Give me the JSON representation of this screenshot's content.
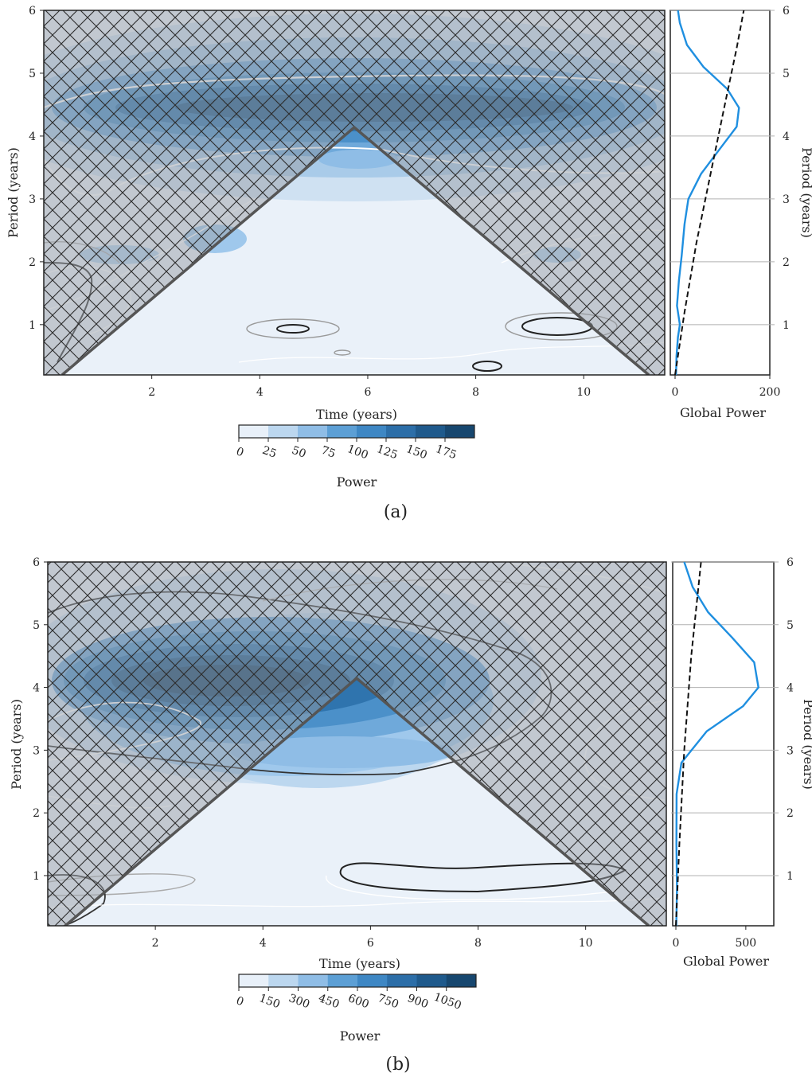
{
  "chart_data": [
    {
      "type": "heatmap",
      "panel_label": "(a)",
      "main": {
        "xlabel": "Time (years)",
        "ylabel": "Period (years)",
        "xlim": [
          0,
          11.5
        ],
        "ylim": [
          0.2,
          6
        ],
        "xticks": [
          2,
          4,
          6,
          8,
          10
        ],
        "yticks": [
          1,
          2,
          3,
          4,
          5,
          6
        ],
        "power_peak": {
          "center_period": 4.5,
          "value": 175
        },
        "cone_of_influence": {
          "apex_time": 5.75,
          "apex_period": 4.15
        },
        "hatch": "cross"
      },
      "colorbar": {
        "label": "Power",
        "ticks": [
          "0",
          "25",
          "50",
          "75",
          "100",
          "125",
          "150",
          "175"
        ],
        "colors": [
          "#e8f0f9",
          "#bcd7ef",
          "#8fbde6",
          "#5c9fd5",
          "#3e87c4",
          "#2c6ea8",
          "#1f5a8c",
          "#17476f"
        ]
      },
      "global": {
        "xlabel": "Global Power",
        "ylabel": "Period (years)",
        "xlim": [
          0,
          200
        ],
        "xticks": [
          0,
          200
        ],
        "yticks": [
          1,
          2,
          3,
          4,
          5,
          6
        ],
        "series": [
          {
            "name": "",
            "color": "#1f8fe0",
            "style": "solid",
            "points": [
              [
                2,
                0.2
              ],
              [
                3,
                0.5
              ],
              [
                6,
                0.8
              ],
              [
                10,
                1.0
              ],
              [
                4,
                1.3
              ],
              [
                8,
                1.7
              ],
              [
                14,
                2.1
              ],
              [
                20,
                2.6
              ],
              [
                28,
                3.0
              ],
              [
                55,
                3.4
              ],
              [
                95,
                3.8
              ],
              [
                130,
                4.15
              ],
              [
                135,
                4.45
              ],
              [
                110,
                4.75
              ],
              [
                60,
                5.1
              ],
              [
                25,
                5.45
              ],
              [
                10,
                5.8
              ],
              [
                6,
                6.0
              ]
            ]
          },
          {
            "name": "",
            "color": "#111111",
            "style": "dashed",
            "points": [
              [
                0,
                0.2
              ],
              [
                20,
                1.2
              ],
              [
                45,
                2.3
              ],
              [
                75,
                3.4
              ],
              [
                105,
                4.5
              ],
              [
                130,
                5.4
              ],
              [
                145,
                6.0
              ]
            ]
          }
        ]
      }
    },
    {
      "type": "heatmap",
      "panel_label": "(b)",
      "main": {
        "xlabel": "Time (years)",
        "ylabel": "Period (years)",
        "xlim": [
          0,
          11.5
        ],
        "ylim": [
          0.2,
          6
        ],
        "xticks": [
          2,
          4,
          6,
          8,
          10
        ],
        "yticks": [
          1,
          2,
          3,
          4,
          5,
          6
        ],
        "power_peak": {
          "center_time": 3.5,
          "center_period": 4.1,
          "value": 1050
        },
        "cone_of_influence": {
          "apex_time": 5.75,
          "apex_period": 4.15
        },
        "hatch": "cross"
      },
      "colorbar": {
        "label": "Power",
        "ticks": [
          "0",
          "150",
          "300",
          "450",
          "600",
          "750",
          "900",
          "1050"
        ],
        "colors": [
          "#e8f0f9",
          "#bcd7ef",
          "#8fbde6",
          "#5c9fd5",
          "#3e87c4",
          "#2c6ea8",
          "#1f5a8c",
          "#17476f"
        ]
      },
      "global": {
        "xlabel": "Global Power",
        "ylabel": "Period (years)",
        "xlim": [
          0,
          700
        ],
        "xticks": [
          0,
          500
        ],
        "yticks": [
          1,
          2,
          3,
          4,
          5,
          6
        ],
        "series": [
          {
            "name": "",
            "color": "#1f8fe0",
            "style": "solid",
            "points": [
              [
                3,
                0.2
              ],
              [
                8,
                0.8
              ],
              [
                4,
                1.5
              ],
              [
                5,
                2.3
              ],
              [
                40,
                2.8
              ],
              [
                220,
                3.3
              ],
              [
                480,
                3.7
              ],
              [
                590,
                4.0
              ],
              [
                560,
                4.4
              ],
              [
                400,
                4.8
              ],
              [
                230,
                5.2
              ],
              [
                120,
                5.6
              ],
              [
                60,
                6.0
              ]
            ]
          },
          {
            "name": "",
            "color": "#111111",
            "style": "dashed",
            "points": [
              [
                0,
                0.2
              ],
              [
                25,
                1.5
              ],
              [
                60,
                3.0
              ],
              [
                110,
                4.5
              ],
              [
                180,
                6.0
              ]
            ]
          }
        ]
      }
    }
  ]
}
